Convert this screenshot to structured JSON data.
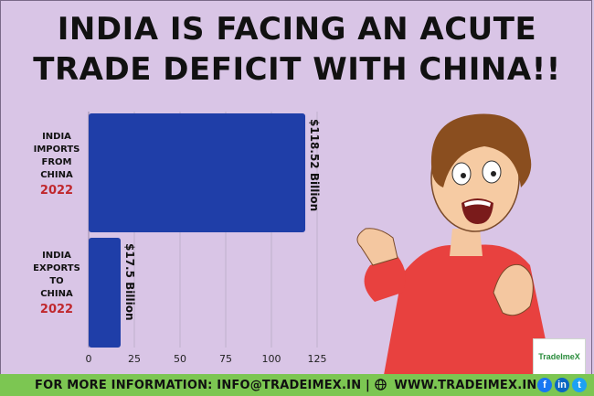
{
  "title_line1": "INDIA IS FACING AN ACUTE",
  "title_line2": "TRADE DEFICIT WITH CHINA!!",
  "chart_data": {
    "type": "bar",
    "orientation": "horizontal",
    "categories": [
      {
        "lines": [
          "INDIA",
          "IMPORTS",
          "FROM",
          "CHINA"
        ],
        "year": "2022"
      },
      {
        "lines": [
          "INDIA",
          "EXPORTS",
          "TO",
          "CHINA"
        ],
        "year": "2022"
      }
    ],
    "values": [
      118.52,
      17.5
    ],
    "data_labels": [
      "$118.52 Billion",
      "$17.5 Billion"
    ],
    "xlim": [
      0,
      125
    ],
    "xticks": [
      "0",
      "25",
      "50",
      "75",
      "100",
      "125"
    ],
    "grid": true,
    "bar_color": "#1f3ea8",
    "year_color": "#c0282d"
  },
  "footer": {
    "text_left": "FOR MORE INFORMATION: INFO@TRADEIMEX.IN |",
    "text_right": "WWW.TRADEIMEX.IN",
    "social": [
      "f",
      "in",
      "t"
    ]
  },
  "logo_text": "TradeImeX",
  "colors": {
    "background": "#d9c5e6",
    "footer": "#7cc652"
  }
}
